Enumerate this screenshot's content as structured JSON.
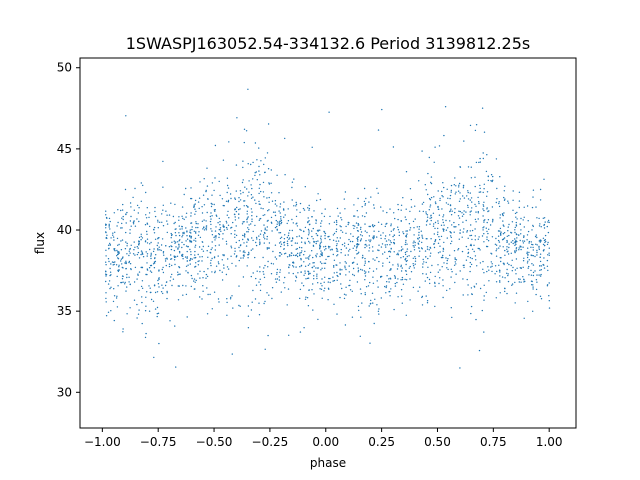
{
  "chart_data": {
    "type": "scatter",
    "title": "1SWASPJ163052.54-334132.6 Period 3139812.25s",
    "xlabel": "phase",
    "ylabel": "flux",
    "xlim": [
      -1.1,
      1.12
    ],
    "ylim": [
      27.8,
      50.6
    ],
    "xticks": [
      -1.0,
      -0.75,
      -0.5,
      -0.25,
      0.0,
      0.25,
      0.5,
      0.75,
      1.0
    ],
    "xtick_labels": [
      "−1.00",
      "−0.75",
      "−0.50",
      "−0.25",
      "0.00",
      "0.25",
      "0.50",
      "0.75",
      "1.00"
    ],
    "yticks": [
      30,
      35,
      40,
      45,
      50
    ],
    "ytick_labels": [
      "30",
      "35",
      "40",
      "45",
      "50"
    ],
    "grid": false,
    "legend": "none",
    "point_color": "#1f77b4",
    "series_profile": {
      "phase": [
        -1.0,
        -0.9,
        -0.8,
        -0.7,
        -0.6,
        -0.5,
        -0.4,
        -0.3,
        -0.2,
        -0.1,
        0.0,
        0.1,
        0.2,
        0.3,
        0.4,
        0.5,
        0.6,
        0.7,
        0.8,
        0.9,
        1.0
      ],
      "flux_median": [
        38.8,
        38.5,
        38.8,
        38.6,
        39.0,
        39.3,
        40.0,
        40.3,
        39.5,
        38.7,
        38.8,
        38.5,
        38.8,
        38.6,
        39.0,
        39.3,
        40.0,
        40.3,
        39.5,
        38.7,
        38.8
      ],
      "flux_upper": [
        41.5,
        42.0,
        42.5,
        42.0,
        42.5,
        44.0,
        44.5,
        46.5,
        43.5,
        42.5,
        41.5,
        42.0,
        42.5,
        42.0,
        42.5,
        44.0,
        44.5,
        46.5,
        43.5,
        42.5,
        41.5
      ],
      "flux_lower": [
        35.0,
        34.5,
        34.0,
        35.0,
        35.5,
        35.0,
        35.5,
        34.5,
        35.5,
        35.5,
        35.0,
        34.5,
        34.0,
        35.0,
        35.5,
        35.0,
        35.5,
        34.5,
        35.5,
        35.5,
        35.0
      ]
    }
  }
}
